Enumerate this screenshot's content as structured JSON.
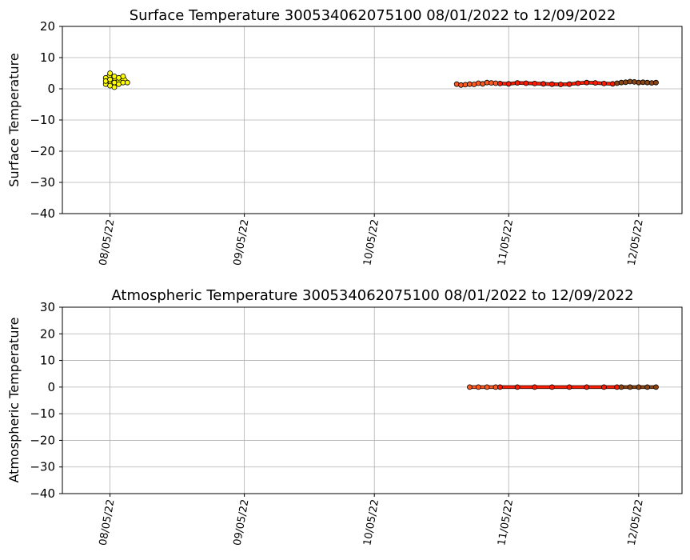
{
  "chart_data": [
    {
      "type": "scatter",
      "title": "Surface Temperature 300534062075100  08/01/2022 to 12/09/2022",
      "xlabel": "",
      "ylabel": "Surface Temperature",
      "xlim": [
        "2022-07-25",
        "2022-12-15"
      ],
      "ylim": [
        -40,
        20
      ],
      "yticks": [
        20,
        10,
        0,
        -10,
        -20,
        -30,
        -40
      ],
      "ytick_labels": [
        "20",
        "10",
        "0",
        "−10",
        "−20",
        "−30",
        "−40"
      ],
      "xticks": [
        "2022-08-05",
        "2022-09-05",
        "2022-10-05",
        "2022-11-05",
        "2022-12-05"
      ],
      "xtick_labels": [
        "08/05/22",
        "09/05/22",
        "10/05/22",
        "11/05/22",
        "12/05/22"
      ],
      "grid": true,
      "series": [
        {
          "color": "#ffff00",
          "x": [
            "2022-08-04",
            "2022-08-04",
            "2022-08-04",
            "2022-08-05",
            "2022-08-05",
            "2022-08-05",
            "2022-08-06",
            "2022-08-06",
            "2022-08-06",
            "2022-08-07",
            "2022-08-07",
            "2022-08-07",
            "2022-08-08",
            "2022-08-08",
            "2022-08-09"
          ],
          "y": [
            3.5,
            1.5,
            2.5,
            5.0,
            3.0,
            1.0,
            2.0,
            0.5,
            4.0,
            2.5,
            1.5,
            3.5,
            2.0,
            4.0,
            2.0
          ]
        },
        {
          "color": "#ff5a1f",
          "x": [
            "2022-10-24",
            "2022-10-25",
            "2022-10-26",
            "2022-10-27",
            "2022-10-28",
            "2022-10-29",
            "2022-10-30",
            "2022-10-31",
            "2022-11-01",
            "2022-11-02"
          ],
          "y": [
            1.5,
            1.2,
            1.3,
            1.5,
            1.4,
            1.8,
            1.6,
            2.0,
            1.9,
            1.8
          ]
        },
        {
          "color": "#ff1a00",
          "x": [
            "2022-11-03",
            "2022-11-05",
            "2022-11-07",
            "2022-11-09",
            "2022-11-11",
            "2022-11-13",
            "2022-11-15",
            "2022-11-17",
            "2022-11-19",
            "2022-11-21",
            "2022-11-23",
            "2022-11-25",
            "2022-11-27",
            "2022-11-29"
          ],
          "y": [
            1.7,
            1.6,
            1.9,
            1.8,
            1.7,
            1.6,
            1.5,
            1.4,
            1.5,
            1.8,
            2.0,
            1.9,
            1.7,
            1.6
          ]
        },
        {
          "color": "#8b4513",
          "x": [
            "2022-11-30",
            "2022-12-01",
            "2022-12-02",
            "2022-12-03",
            "2022-12-04",
            "2022-12-05",
            "2022-12-06",
            "2022-12-07",
            "2022-12-08",
            "2022-12-09"
          ],
          "y": [
            1.8,
            2.0,
            2.1,
            2.3,
            2.2,
            2.0,
            2.1,
            2.0,
            1.9,
            2.0
          ]
        }
      ]
    },
    {
      "type": "scatter",
      "title": "Atmospheric Temperature 300534062075100  08/01/2022 to 12/09/2022",
      "xlabel": "",
      "ylabel": "Atmospheric Temperature",
      "xlim": [
        "2022-07-25",
        "2022-12-15"
      ],
      "ylim": [
        -40,
        30
      ],
      "yticks": [
        30,
        20,
        10,
        0,
        -10,
        -20,
        -30,
        -40
      ],
      "ytick_labels": [
        "30",
        "20",
        "10",
        "0",
        "−10",
        "−20",
        "−30",
        "−40"
      ],
      "xticks": [
        "2022-08-05",
        "2022-09-05",
        "2022-10-05",
        "2022-11-05",
        "2022-12-05"
      ],
      "xtick_labels": [
        "08/05/22",
        "09/05/22",
        "10/05/22",
        "11/05/22",
        "12/05/22"
      ],
      "grid": true,
      "series": [
        {
          "color": "#ff5a1f",
          "x": [
            "2022-10-27",
            "2022-10-29",
            "2022-10-31",
            "2022-11-02"
          ],
          "y": [
            0,
            0,
            0,
            0
          ]
        },
        {
          "color": "#ff1a00",
          "x": [
            "2022-11-03",
            "2022-11-07",
            "2022-11-11",
            "2022-11-15",
            "2022-11-19",
            "2022-11-23",
            "2022-11-27",
            "2022-11-30"
          ],
          "y": [
            0,
            0,
            0,
            0,
            0,
            0,
            0,
            0
          ]
        },
        {
          "color": "#8b4513",
          "x": [
            "2022-12-01",
            "2022-12-03",
            "2022-12-05",
            "2022-12-07",
            "2022-12-09"
          ],
          "y": [
            0,
            0,
            0,
            0,
            0
          ]
        }
      ]
    }
  ]
}
